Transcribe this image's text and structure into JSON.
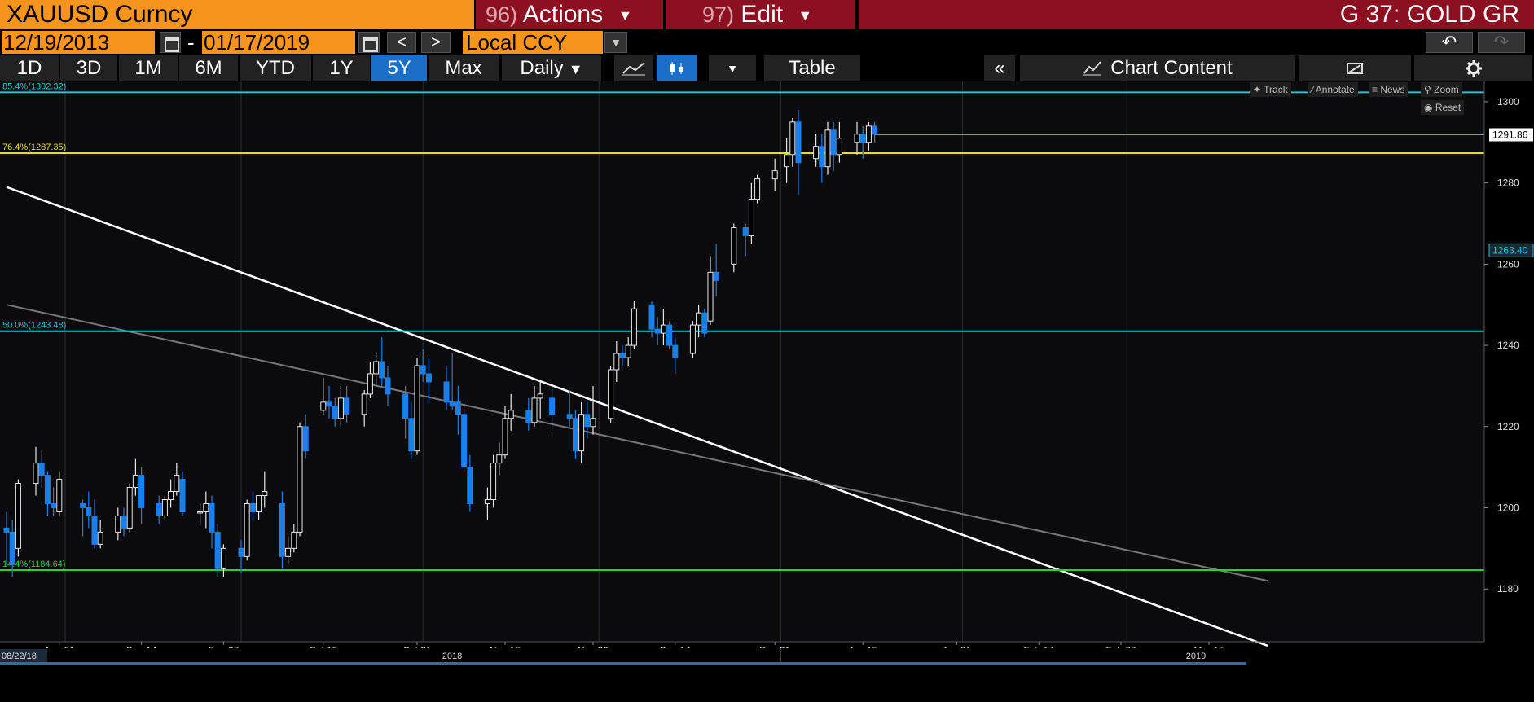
{
  "header": {
    "security": "XAUUSD Curncy",
    "actions_num": "96)",
    "actions_label": "Actions",
    "edit_num": "97)",
    "edit_label": "Edit",
    "chart_name": "G 37: GOLD GR"
  },
  "dates": {
    "start": "12/19/2013",
    "separator": "-",
    "end": "01/17/2019",
    "prev": "<",
    "next": ">",
    "currency": "Local CCY"
  },
  "toolbar": {
    "ranges": [
      "1D",
      "3D",
      "1M",
      "6M",
      "YTD",
      "1Y",
      "5Y",
      "Max"
    ],
    "active_range": "5Y",
    "frequency": "Daily",
    "table_label": "Table",
    "collapse_label": "«",
    "chart_content_label": "Chart Content",
    "track_label": "Track",
    "annotate_label": "Annotate",
    "news_label": "News",
    "zoom_label": "Zoom",
    "reset_label": "Reset"
  },
  "colors": {
    "orange": "#f7941d",
    "red": "#8c1020",
    "blue": "#1a6fc9",
    "up_candle": "#ffffff",
    "down_candle": "#1a7fe8"
  },
  "chart_data": {
    "type": "candlestick",
    "ylim": [
      1167,
      1305
    ],
    "yticks": [
      1180,
      1200,
      1220,
      1240,
      1260,
      1280,
      1300
    ],
    "x_labels": [
      "Aug 31",
      "Sep 14",
      "Sep 28",
      "Oct 15",
      "Oct 31",
      "Nov 15",
      "Nov 30",
      "Dec 14",
      "Dec 31",
      "Jan 15",
      "Jan 31",
      "Feb 14",
      "Feb 28",
      "Mar 15"
    ],
    "bottom_dates": [
      "08/22/18",
      "2018",
      "2019"
    ],
    "last_price": "1291.86",
    "marker_price": "1263.40",
    "fib_levels": [
      {
        "label": "85.4%(1302.32)",
        "value": 1302.32,
        "color": "#22c5d8"
      },
      {
        "label": "76.4%(1287.35)",
        "value": 1287.35,
        "color": "#e8e000"
      },
      {
        "label": "50.0%(1243.48)",
        "value": 1243.48,
        "color": "#22c5d8"
      },
      {
        "label": "14.4%(1184.64)",
        "value": 1184.64,
        "color": "#29d32c"
      }
    ],
    "trendlines": [
      {
        "name": "white",
        "from": [
          "Aug 22",
          1279
        ],
        "to": [
          "Mar 25",
          1166
        ]
      },
      {
        "name": "gray",
        "from": [
          "Aug 22",
          1250
        ],
        "to": [
          "Mar 25",
          1182
        ]
      }
    ],
    "candles": [
      [
        "08-22",
        1195,
        1199,
        1186,
        1194
      ],
      [
        "08-23",
        1194,
        1197,
        1183,
        1186
      ],
      [
        "08-24",
        1190,
        1207,
        1188,
        1206
      ],
      [
        "08-27",
        1206,
        1215,
        1203,
        1211
      ],
      [
        "08-28",
        1211,
        1214,
        1205,
        1208
      ],
      [
        "08-29",
        1208,
        1209,
        1198,
        1201
      ],
      [
        "08-30",
        1201,
        1205,
        1198,
        1200
      ],
      [
        "08-31",
        1199,
        1209,
        1198,
        1207
      ],
      [
        "09-04",
        1201,
        1202,
        1193,
        1200
      ],
      [
        "09-05",
        1200,
        1204,
        1195,
        1198
      ],
      [
        "09-06",
        1198,
        1202,
        1190,
        1191
      ],
      [
        "09-07",
        1191,
        1197,
        1190,
        1194
      ],
      [
        "09-10",
        1194,
        1200,
        1192,
        1198
      ],
      [
        "09-11",
        1198,
        1200,
        1193,
        1195
      ],
      [
        "09-12",
        1195,
        1206,
        1194,
        1205
      ],
      [
        "09-13",
        1205,
        1212,
        1203,
        1208
      ],
      [
        "09-14",
        1208,
        1210,
        1196,
        1200
      ],
      [
        "09-17",
        1201,
        1203,
        1196,
        1198
      ],
      [
        "09-18",
        1198,
        1203,
        1197,
        1202
      ],
      [
        "09-19",
        1202,
        1207,
        1200,
        1204
      ],
      [
        "09-20",
        1204,
        1211,
        1203,
        1208
      ],
      [
        "09-21",
        1207,
        1209,
        1198,
        1199
      ],
      [
        "09-24",
        1199,
        1201,
        1196,
        1199
      ],
      [
        "09-25",
        1199,
        1204,
        1195,
        1201
      ],
      [
        "09-26",
        1201,
        1203,
        1190,
        1194
      ],
      [
        "09-27",
        1194,
        1196,
        1183,
        1185
      ],
      [
        "09-28",
        1185,
        1191,
        1183,
        1190
      ],
      [
        "10-01",
        1190,
        1192,
        1184,
        1188
      ],
      [
        "10-02",
        1188,
        1202,
        1187,
        1201
      ],
      [
        "10-03",
        1201,
        1204,
        1197,
        1199
      ],
      [
        "10-04",
        1199,
        1203,
        1197,
        1203
      ],
      [
        "10-05",
        1203,
        1209,
        1200,
        1204
      ],
      [
        "10-08",
        1201,
        1204,
        1185,
        1188
      ],
      [
        "10-09",
        1188,
        1193,
        1186,
        1190
      ],
      [
        "10-10",
        1190,
        1196,
        1189,
        1194
      ],
      [
        "10-11",
        1194,
        1221,
        1193,
        1220
      ],
      [
        "10-12",
        1220,
        1223,
        1212,
        1214
      ],
      [
        "10-15",
        1224,
        1232,
        1223,
        1226
      ],
      [
        "10-16",
        1226,
        1230,
        1222,
        1225
      ],
      [
        "10-17",
        1225,
        1227,
        1220,
        1222
      ],
      [
        "10-18",
        1222,
        1230,
        1220,
        1227
      ],
      [
        "10-19",
        1227,
        1230,
        1221,
        1223
      ],
      [
        "10-22",
        1223,
        1229,
        1220,
        1228
      ],
      [
        "10-23",
        1228,
        1236,
        1227,
        1233
      ],
      [
        "10-24",
        1233,
        1238,
        1230,
        1236
      ],
      [
        "10-25",
        1236,
        1242,
        1230,
        1232
      ],
      [
        "10-26",
        1232,
        1235,
        1225,
        1228
      ],
      [
        "10-29",
        1228,
        1230,
        1217,
        1222
      ],
      [
        "10-30",
        1222,
        1226,
        1212,
        1214
      ],
      [
        "10-31",
        1214,
        1237,
        1213,
        1235
      ],
      [
        "11-01",
        1235,
        1239,
        1231,
        1233
      ],
      [
        "11-02",
        1233,
        1237,
        1226,
        1231
      ],
      [
        "11-05",
        1231,
        1235,
        1224,
        1226
      ],
      [
        "11-06",
        1226,
        1238,
        1224,
        1225
      ],
      [
        "11-07",
        1226,
        1230,
        1218,
        1223
      ],
      [
        "11-08",
        1223,
        1226,
        1209,
        1210
      ],
      [
        "11-09",
        1210,
        1213,
        1199,
        1201
      ],
      [
        "11-12",
        1201,
        1205,
        1197,
        1202
      ],
      [
        "11-13",
        1202,
        1213,
        1200,
        1211
      ],
      [
        "11-14",
        1211,
        1216,
        1208,
        1213
      ],
      [
        "11-15",
        1213,
        1225,
        1212,
        1222
      ],
      [
        "11-16",
        1222,
        1228,
        1219,
        1224
      ],
      [
        "11-19",
        1224,
        1227,
        1219,
        1221
      ],
      [
        "11-20",
        1221,
        1230,
        1220,
        1227
      ],
      [
        "11-21",
        1227,
        1231,
        1222,
        1228
      ],
      [
        "11-23",
        1227,
        1230,
        1219,
        1223
      ],
      [
        "11-26",
        1223,
        1229,
        1220,
        1222
      ],
      [
        "11-27",
        1222,
        1224,
        1212,
        1214
      ],
      [
        "11-28",
        1214,
        1226,
        1211,
        1223
      ],
      [
        "11-29",
        1223,
        1226,
        1217,
        1220
      ],
      [
        "11-30",
        1220,
        1230,
        1218,
        1222
      ],
      [
        "12-03",
        1222,
        1235,
        1221,
        1234
      ],
      [
        "12-04",
        1234,
        1241,
        1231,
        1238
      ],
      [
        "12-05",
        1238,
        1240,
        1235,
        1237
      ],
      [
        "12-06",
        1237,
        1242,
        1235,
        1240
      ],
      [
        "12-07",
        1240,
        1251,
        1239,
        1249
      ],
      [
        "12-10",
        1250,
        1251,
        1242,
        1244
      ],
      [
        "12-11",
        1244,
        1247,
        1240,
        1243
      ],
      [
        "12-12",
        1243,
        1249,
        1240,
        1245
      ],
      [
        "12-13",
        1245,
        1246,
        1239,
        1240
      ],
      [
        "12-14",
        1240,
        1242,
        1233,
        1237
      ],
      [
        "12-17",
        1238,
        1246,
        1237,
        1245
      ],
      [
        "12-18",
        1245,
        1250,
        1242,
        1248
      ],
      [
        "12-19",
        1248,
        1249,
        1242,
        1243
      ],
      [
        "12-20",
        1246,
        1262,
        1245,
        1258
      ],
      [
        "12-21",
        1258,
        1265,
        1252,
        1256
      ],
      [
        "12-24",
        1260,
        1270,
        1258,
        1269
      ],
      [
        "12-26",
        1269,
        1270,
        1262,
        1267
      ],
      [
        "12-27",
        1267,
        1280,
        1265,
        1276
      ],
      [
        "12-28",
        1276,
        1282,
        1275,
        1281
      ],
      [
        "12-31",
        1281,
        1286,
        1278,
        1283
      ],
      [
        "01-02",
        1284,
        1291,
        1280,
        1287
      ],
      [
        "01-03",
        1287,
        1296,
        1284,
        1295
      ],
      [
        "01-04",
        1295,
        1298,
        1277,
        1285
      ],
      [
        "01-07",
        1286,
        1292,
        1284,
        1289
      ],
      [
        "01-08",
        1289,
        1292,
        1280,
        1284
      ],
      [
        "01-09",
        1284,
        1295,
        1282,
        1293
      ],
      [
        "01-10",
        1293,
        1295,
        1283,
        1287
      ],
      [
        "01-11",
        1287,
        1295,
        1285,
        1291
      ],
      [
        "01-14",
        1290,
        1295,
        1287,
        1292
      ],
      [
        "01-15",
        1292,
        1294,
        1286,
        1290
      ],
      [
        "01-16",
        1290,
        1295,
        1288,
        1294
      ],
      [
        "01-17",
        1294,
        1295,
        1290,
        1292
      ]
    ]
  }
}
